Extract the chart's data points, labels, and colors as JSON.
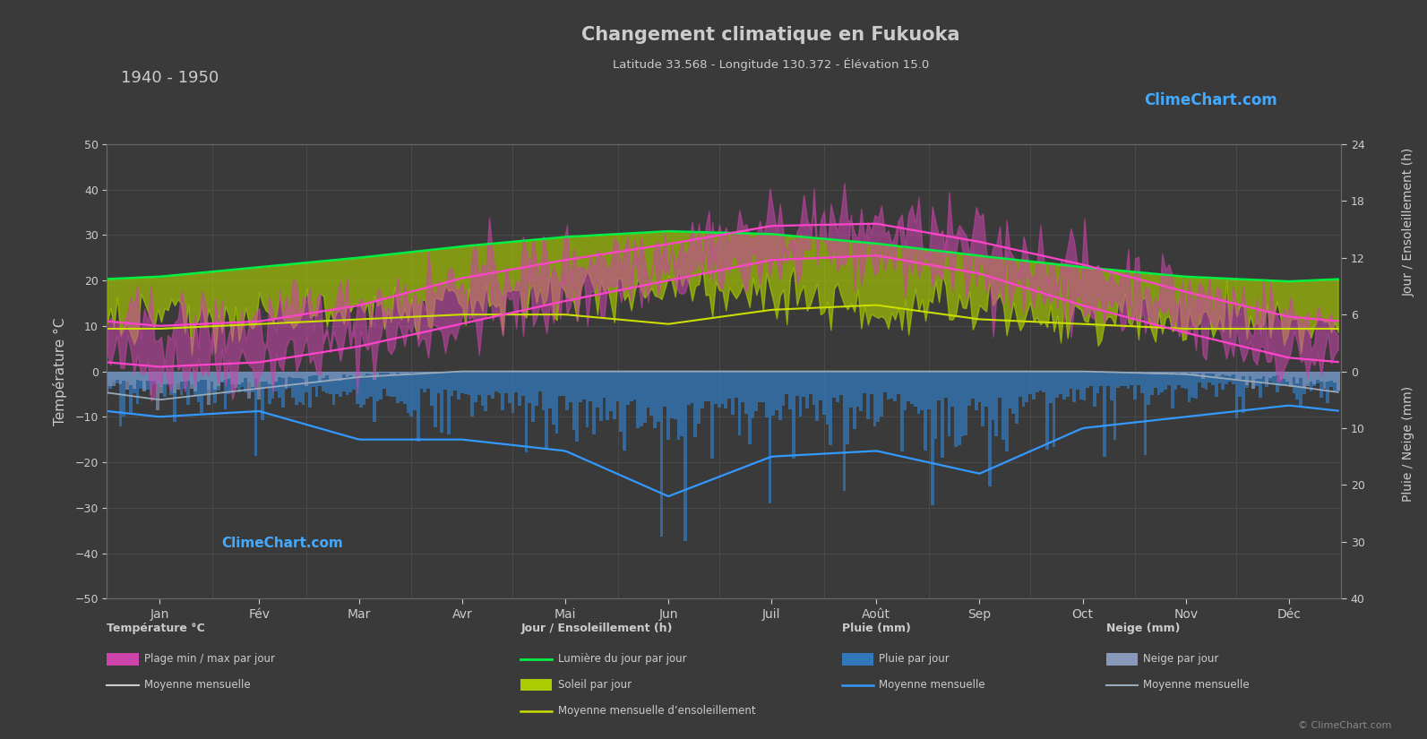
{
  "title": "Changement climatique en Fukuoka",
  "subtitle": "Latitude 33.568 - Longitude 130.372 - Élévation 15.0",
  "year_range": "1940 - 1950",
  "bg_color": "#3a3a3a",
  "text_color": "#cccccc",
  "ylabel_left": "Température °C",
  "ylabel_right_top": "Jour / Ensoleillement (h)",
  "ylabel_right_bottom": "Pluie / Neige (mm)",
  "months": [
    "Jan",
    "Fév",
    "Mar",
    "Avr",
    "Mai",
    "Jun",
    "Juil",
    "Août",
    "Sep",
    "Oct",
    "Nov",
    "Déc"
  ],
  "temp_min_monthly": [
    1.0,
    2.0,
    5.5,
    10.5,
    15.5,
    20.0,
    24.5,
    25.5,
    21.5,
    14.5,
    8.5,
    3.0
  ],
  "temp_max_monthly": [
    10.0,
    11.0,
    14.5,
    20.5,
    24.5,
    28.0,
    32.0,
    32.5,
    28.5,
    23.5,
    17.5,
    12.0
  ],
  "daylight_monthly": [
    10.0,
    11.0,
    12.0,
    13.2,
    14.2,
    14.8,
    14.5,
    13.5,
    12.2,
    11.0,
    10.0,
    9.5
  ],
  "sunshine_monthly": [
    4.5,
    5.0,
    5.5,
    6.0,
    6.0,
    5.0,
    6.5,
    7.0,
    5.5,
    5.0,
    4.5,
    4.5
  ],
  "rain_monthly": [
    8.0,
    7.0,
    12.0,
    12.0,
    14.0,
    22.0,
    15.0,
    14.0,
    18.0,
    10.0,
    8.0,
    6.0
  ],
  "snow_monthly": [
    5.0,
    3.0,
    1.0,
    0.0,
    0.0,
    0.0,
    0.0,
    0.0,
    0.0,
    0.0,
    0.5,
    2.5
  ],
  "color_temp_fill": "#cc44aa",
  "color_sun_fill": "#aacc00",
  "color_daylight_line": "#00ee44",
  "color_sunshine_line": "#ccdd00",
  "color_temp_mean_line": "#ff44cc",
  "color_rain_bar": "#3377bb",
  "color_snow_bar": "#8899bb",
  "color_rain_mean_line": "#3399ff",
  "color_snow_mean_line": "#99aabb",
  "logo_color": "#44aaff",
  "sun_scale_max_temp": 50.0,
  "sun_scale_max_hours": 24.0,
  "rain_scale_min_temp": -50.0,
  "rain_scale_max_mm": 40.0,
  "legend_headers": [
    "Température °C",
    "Jour / Ensoleillement (h)",
    "Pluie (mm)",
    "Neige (mm)"
  ],
  "legend_col1": [
    "Plage min / max par jour",
    "Moyenne mensuelle"
  ],
  "legend_col2": [
    "Lumière du jour par jour",
    "Soleil par jour",
    "Moyenne mensuelle d’ensoleillement"
  ],
  "legend_col3": [
    "Pluie par jour",
    "Moyenne mensuelle"
  ],
  "legend_col4": [
    "Neige par jour",
    "Moyenne mensuelle"
  ],
  "copyright": "© ClimeChart.com"
}
